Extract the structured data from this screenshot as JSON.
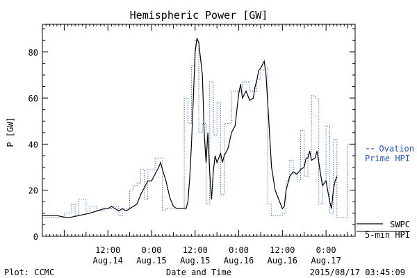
{
  "chart_data": {
    "type": "line",
    "title": "Hemispheric Power [GW]",
    "ylabel": "P [GW]",
    "xlabel": "Date and Time",
    "ylim": [
      0,
      92
    ],
    "yticks": [
      0,
      20,
      40,
      60,
      80
    ],
    "xlim": [
      -18,
      68
    ],
    "xticks": [
      {
        "x": 0,
        "time": "12:00",
        "date": "Aug.14"
      },
      {
        "x": 12,
        "time": "0:00",
        "date": "Aug.15"
      },
      {
        "x": 24,
        "time": "12:00",
        "date": "Aug.15"
      },
      {
        "x": 36,
        "time": "0:00",
        "date": "Aug.16"
      },
      {
        "x": 48,
        "time": "12:00",
        "date": "Aug.16"
      },
      {
        "x": 60,
        "time": "0:00",
        "date": "Aug.17"
      }
    ],
    "grid": false,
    "series": [
      {
        "name": "SWPC 5-min HPI",
        "style": "solid",
        "color": "#000000",
        "points": [
          [
            -18,
            9
          ],
          [
            -14,
            9
          ],
          [
            -11,
            8
          ],
          [
            -8,
            9
          ],
          [
            -5,
            10
          ],
          [
            -3,
            11
          ],
          [
            -1,
            12
          ],
          [
            0,
            12
          ],
          [
            1,
            13
          ],
          [
            2,
            12
          ],
          [
            3,
            11
          ],
          [
            4,
            12
          ],
          [
            5,
            11
          ],
          [
            6,
            12
          ],
          [
            7,
            13
          ],
          [
            8,
            14
          ],
          [
            9,
            18
          ],
          [
            10,
            21
          ],
          [
            11,
            24
          ],
          [
            12,
            24
          ],
          [
            13,
            27
          ],
          [
            14,
            30
          ],
          [
            14.5,
            32
          ],
          [
            15,
            29
          ],
          [
            16,
            24
          ],
          [
            17,
            17
          ],
          [
            18,
            13
          ],
          [
            19,
            12
          ],
          [
            20,
            12
          ],
          [
            21,
            12
          ],
          [
            21.5,
            12
          ],
          [
            22,
            15
          ],
          [
            22.5,
            25
          ],
          [
            23,
            40
          ],
          [
            23.5,
            60
          ],
          [
            24,
            80
          ],
          [
            24.5,
            86
          ],
          [
            25,
            84
          ],
          [
            26,
            70
          ],
          [
            26.5,
            45
          ],
          [
            27,
            32
          ],
          [
            27.5,
            45
          ],
          [
            28,
            28
          ],
          [
            28.5,
            16
          ],
          [
            29,
            28
          ],
          [
            29.5,
            35
          ],
          [
            30,
            32
          ],
          [
            31,
            36
          ],
          [
            31.5,
            32
          ],
          [
            32,
            35
          ],
          [
            33,
            38
          ],
          [
            34,
            45
          ],
          [
            35,
            48
          ],
          [
            35.5,
            55
          ],
          [
            36,
            62
          ],
          [
            36.5,
            66
          ],
          [
            37,
            60
          ],
          [
            38,
            63
          ],
          [
            39,
            59
          ],
          [
            40,
            60
          ],
          [
            40.5,
            65
          ],
          [
            41,
            68
          ],
          [
            41.5,
            72
          ],
          [
            42,
            73
          ],
          [
            43,
            76
          ],
          [
            43.5,
            70
          ],
          [
            44,
            57
          ],
          [
            45,
            30
          ],
          [
            46,
            20
          ],
          [
            47,
            16
          ],
          [
            48,
            12
          ],
          [
            48.5,
            13
          ],
          [
            49,
            20
          ],
          [
            50,
            26
          ],
          [
            51,
            28
          ],
          [
            52,
            27
          ],
          [
            53,
            29
          ],
          [
            54,
            30
          ],
          [
            54.5,
            34
          ],
          [
            55,
            34
          ],
          [
            55.5,
            37
          ],
          [
            56,
            33
          ],
          [
            57,
            34
          ],
          [
            57.5,
            37
          ],
          [
            58,
            32
          ],
          [
            59,
            22
          ],
          [
            60,
            24
          ],
          [
            61,
            15
          ],
          [
            61.5,
            12
          ],
          [
            62,
            20
          ],
          [
            62.5,
            24
          ],
          [
            63,
            26
          ]
        ]
      },
      {
        "name": "Ovation Prime HPI",
        "style": "dotted-step",
        "color": "#2255cc",
        "steps": [
          [
            -18,
            8
          ],
          [
            -12,
            10
          ],
          [
            -10,
            14
          ],
          [
            -9,
            9
          ],
          [
            -8,
            16
          ],
          [
            -6,
            11
          ],
          [
            -5,
            13
          ],
          [
            -3,
            11
          ],
          [
            -1,
            12
          ],
          [
            1,
            13
          ],
          [
            3,
            9
          ],
          [
            4,
            12
          ],
          [
            5,
            12
          ],
          [
            6,
            20
          ],
          [
            7,
            22
          ],
          [
            8,
            23
          ],
          [
            9,
            29
          ],
          [
            10,
            16
          ],
          [
            11,
            29
          ],
          [
            12,
            29
          ],
          [
            13,
            34
          ],
          [
            15,
            11
          ],
          [
            16,
            12
          ],
          [
            18,
            12
          ],
          [
            20,
            12
          ],
          [
            21,
            60
          ],
          [
            22,
            49
          ],
          [
            23,
            74
          ],
          [
            24,
            85
          ],
          [
            25,
            45
          ],
          [
            26,
            49
          ],
          [
            27,
            14
          ],
          [
            28,
            67
          ],
          [
            29,
            44
          ],
          [
            30,
            58
          ],
          [
            31,
            18
          ],
          [
            32,
            49
          ],
          [
            34,
            63
          ],
          [
            36,
            63
          ],
          [
            37,
            67
          ],
          [
            39,
            63
          ],
          [
            41,
            68
          ],
          [
            42,
            72
          ],
          [
            43,
            73
          ],
          [
            44,
            14
          ],
          [
            45,
            9
          ],
          [
            46,
            9
          ],
          [
            47,
            9
          ],
          [
            48,
            10
          ],
          [
            49,
            24
          ],
          [
            50,
            33
          ],
          [
            51,
            27
          ],
          [
            52,
            24
          ],
          [
            53,
            46
          ],
          [
            54,
            26
          ],
          [
            55,
            36
          ],
          [
            56,
            61
          ],
          [
            57,
            60
          ],
          [
            58,
            14
          ],
          [
            59,
            24
          ],
          [
            60,
            48
          ],
          [
            61,
            10
          ],
          [
            62,
            42
          ],
          [
            63,
            8
          ],
          [
            65,
            8
          ],
          [
            66,
            40
          ]
        ]
      }
    ],
    "legend": [
      {
        "lines": [
          "Ovation",
          "Prime HPI"
        ],
        "color": "#2255cc",
        "style": "dashed"
      },
      {
        "lines": [
          "SWPC",
          "5-min HPI"
        ],
        "color": "#000000",
        "style": "solid"
      }
    ],
    "footer": {
      "left": "Plot: CCMC",
      "right": "2015/08/17 03:45:09"
    }
  }
}
